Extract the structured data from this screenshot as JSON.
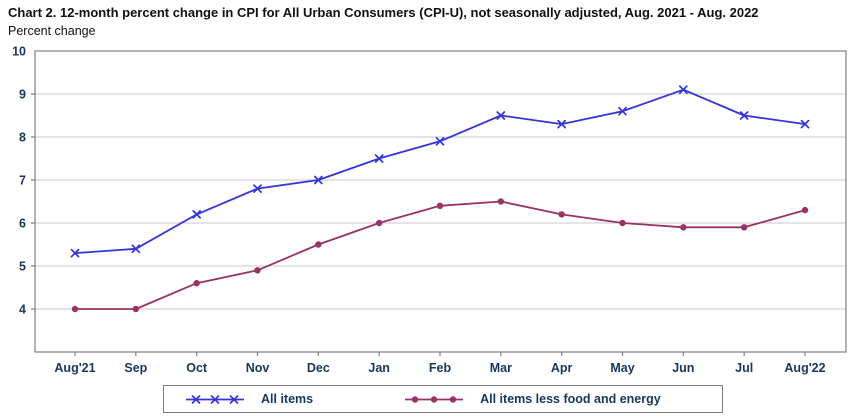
{
  "chart_data": {
    "type": "line",
    "title": "Chart 2. 12-month percent change in CPI for All Urban Consumers (CPI-U), not seasonally adjusted, Aug. 2021 - Aug. 2022",
    "ylabel": "Percent change",
    "xlabel": "",
    "categories": [
      "Aug'21",
      "Sep",
      "Oct",
      "Nov",
      "Dec",
      "Jan",
      "Feb",
      "Mar",
      "Apr",
      "May",
      "Jun",
      "Jul",
      "Aug'22"
    ],
    "series": [
      {
        "name": "All items",
        "marker": "x",
        "color": "#3333e0",
        "values": [
          5.3,
          5.4,
          6.2,
          6.8,
          7.0,
          7.5,
          7.9,
          8.5,
          8.3,
          8.6,
          9.1,
          8.5,
          8.3
        ]
      },
      {
        "name": "All items less food and energy",
        "marker": "circle",
        "color": "#993366",
        "values": [
          4.0,
          4.0,
          4.6,
          4.9,
          5.5,
          6.0,
          6.4,
          6.5,
          6.2,
          6.0,
          5.9,
          5.9,
          6.3
        ]
      }
    ],
    "yticks": [
      4,
      5,
      6,
      7,
      8,
      9,
      10
    ],
    "ylim": [
      3,
      10
    ],
    "grid": "horizontal gridlines on",
    "legend_position": "bottom",
    "colors": {
      "grid": "#c9c9c9",
      "frame": "#7f7f7f",
      "axis_text": "#17375e"
    }
  }
}
